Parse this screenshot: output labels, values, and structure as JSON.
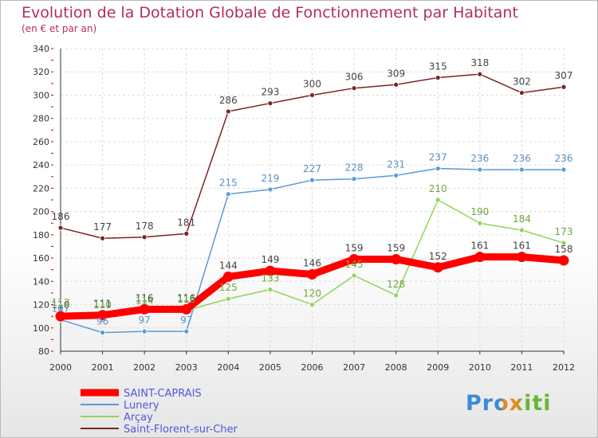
{
  "title": "Evolution de la Dotation Globale de Fonctionnement par Habitant",
  "subtitle": "(en € et par an)",
  "logo": "Proxiti",
  "chart_data": {
    "type": "line",
    "x": [
      "2000",
      "2001",
      "2002",
      "2003",
      "2004",
      "2005",
      "2006",
      "2007",
      "2008",
      "2009",
      "2010",
      "2011",
      "2012"
    ],
    "ylim": [
      80,
      340
    ],
    "yticks": [
      80,
      100,
      120,
      140,
      160,
      180,
      200,
      220,
      240,
      260,
      280,
      300,
      320,
      340
    ],
    "grid": true,
    "legend": "bottom-left",
    "series": [
      {
        "name": "SAINT-CAPRAIS",
        "color": "#ff0000",
        "labelColor": "#444444",
        "values": [
          110,
          111,
          116,
          116,
          144,
          149,
          146,
          159,
          159,
          152,
          161,
          161,
          158
        ]
      },
      {
        "name": "Lunery",
        "color": "#5b9bd5",
        "labelColor": "#5b8fc0",
        "values": [
          107,
          96,
          97,
          97,
          215,
          219,
          227,
          228,
          231,
          237,
          236,
          236,
          236
        ]
      },
      {
        "name": "Arçay",
        "color": "#8fd45a",
        "labelColor": "#6aa83c",
        "values": [
          112,
          110,
          114,
          115,
          125,
          133,
          120,
          145,
          128,
          210,
          190,
          184,
          173
        ]
      },
      {
        "name": "Saint-Florent-sur-Cher",
        "color": "#7a2424",
        "labelColor": "#444444",
        "values": [
          186,
          177,
          178,
          181,
          286,
          293,
          300,
          306,
          309,
          315,
          318,
          302,
          307
        ]
      }
    ]
  }
}
